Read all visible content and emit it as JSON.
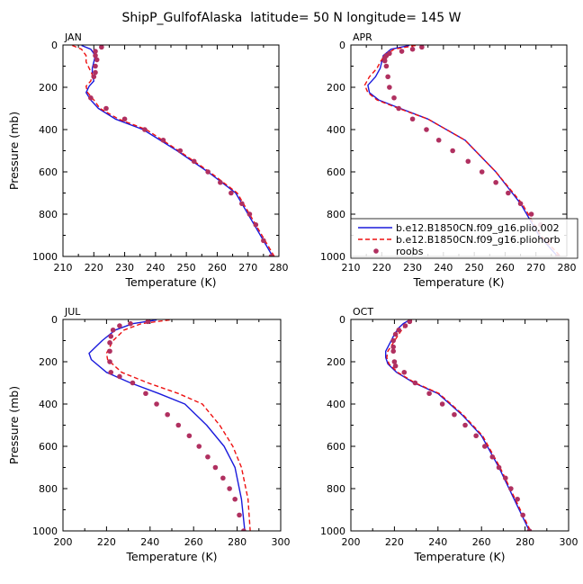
{
  "title": "ShipP_GulfofAlaska  latitude= 50 N longitude= 145 W",
  "colors": {
    "run1": "#1a1adc",
    "run2": "#ee1111",
    "roobs": "#b03060",
    "axis": "#000000"
  },
  "legend": {
    "entries": [
      {
        "label": "b.e12.B1850CN.f09_g16.plio.002",
        "style": "solid"
      },
      {
        "label": "b.e12.B1850CN.f09_g16.pliohorb",
        "style": "dashed"
      },
      {
        "label": "roobs",
        "style": "markers"
      }
    ]
  },
  "chart_data": [
    {
      "type": "line",
      "panel_label": "JAN",
      "xlabel": "Temperature (K)",
      "ylabel": "Pressure (mb)",
      "xlim": [
        210,
        280
      ],
      "ylim": [
        1000,
        0
      ],
      "y_inverted": true,
      "x_ticks": [
        210,
        220,
        230,
        240,
        250,
        260,
        270,
        280
      ],
      "y_ticks": [
        0,
        200,
        400,
        600,
        800,
        1000
      ],
      "series": [
        {
          "name": "b.e12.B1850CN.f09_g16.plio.002",
          "x": [
            216,
            219,
            220.5,
            220,
            219.5,
            219.5,
            220,
            218.5,
            217.5,
            219,
            221.5,
            227,
            236,
            247,
            257,
            266,
            272,
            278
          ],
          "y": [
            2,
            20,
            50,
            80,
            110,
            140,
            170,
            195,
            225,
            260,
            300,
            350,
            400,
            500,
            600,
            700,
            850,
            1000
          ]
        },
        {
          "name": "b.e12.B1850CN.f09_g16.pliohorb",
          "x": [
            213,
            216,
            217.5,
            217.5,
            218.5,
            219.5,
            219,
            217.5,
            218,
            220,
            222,
            228,
            237,
            247.5,
            257.5,
            266.5,
            272.5,
            278.5
          ],
          "y": [
            2,
            20,
            50,
            80,
            110,
            140,
            170,
            195,
            225,
            260,
            300,
            350,
            400,
            500,
            600,
            700,
            850,
            1000
          ]
        },
        {
          "name": "roobs",
          "x": [
            222.5,
            220.5,
            220.5,
            221,
            220.5,
            220.5,
            220,
            219,
            224,
            230,
            236.5,
            242.5,
            248,
            252.5,
            257,
            261,
            264.5,
            268,
            270.5,
            272.5,
            275,
            277.5
          ],
          "y": [
            10,
            30,
            50,
            70,
            100,
            130,
            150,
            250,
            300,
            350,
            400,
            450,
            500,
            550,
            600,
            650,
            700,
            750,
            800,
            850,
            925,
            1000
          ]
        }
      ]
    },
    {
      "type": "line",
      "panel_label": "APR",
      "xlabel": "Temperature (K)",
      "ylabel": "",
      "xlim": [
        210,
        280
      ],
      "ylim": [
        1000,
        0
      ],
      "y_inverted": true,
      "x_ticks": [
        210,
        220,
        230,
        240,
        250,
        260,
        270,
        280
      ],
      "y_ticks": [
        0,
        200,
        400,
        600,
        800,
        1000
      ],
      "series": [
        {
          "name": "b.e12.B1850CN.f09_g16.plio.002",
          "x": [
            229,
            223,
            220.5,
            220,
            219.5,
            218,
            215.5,
            216,
            219,
            226,
            235,
            247,
            257,
            265,
            271,
            277
          ],
          "y": [
            2,
            20,
            50,
            80,
            110,
            150,
            190,
            225,
            260,
            300,
            350,
            450,
            600,
            750,
            900,
            1000
          ]
        },
        {
          "name": "b.e12.B1850CN.f09_g16.pliohorb",
          "x": [
            231,
            224,
            221,
            219.5,
            218.5,
            216,
            214.5,
            215.5,
            218.5,
            225.5,
            235,
            247,
            257,
            265.5,
            271.5,
            278
          ],
          "y": [
            2,
            20,
            50,
            80,
            110,
            150,
            190,
            225,
            260,
            300,
            350,
            450,
            600,
            750,
            900,
            1000
          ]
        },
        {
          "name": "roobs",
          "x": [
            233,
            230,
            226.5,
            222.5,
            221.5,
            221,
            221,
            221.5,
            222,
            222.5,
            224,
            225.5,
            230,
            234.5,
            238.5,
            243,
            248,
            252.5,
            257,
            261,
            265,
            268.5,
            271.5,
            274.5,
            277
          ],
          "y": [
            10,
            20,
            30,
            40,
            50,
            60,
            75,
            100,
            150,
            200,
            250,
            300,
            350,
            400,
            450,
            500,
            550,
            600,
            650,
            700,
            750,
            800,
            850,
            925,
            1000
          ]
        }
      ]
    },
    {
      "type": "line",
      "panel_label": "JUL",
      "xlabel": "Temperature (K)",
      "ylabel": "Pressure (mb)",
      "xlim": [
        200,
        300
      ],
      "ylim": [
        1000,
        0
      ],
      "y_inverted": true,
      "x_ticks": [
        200,
        220,
        240,
        260,
        280,
        300
      ],
      "y_ticks": [
        0,
        200,
        400,
        600,
        800,
        1000
      ],
      "series": [
        {
          "name": "b.e12.B1850CN.f09_g16.plio.002",
          "x": [
            243,
            232,
            224,
            218,
            212,
            213,
            220,
            231,
            244,
            256,
            266,
            274,
            279,
            282,
            283.5
          ],
          "y": [
            2,
            20,
            50,
            100,
            160,
            190,
            250,
            300,
            350,
            400,
            500,
            600,
            700,
            850,
            1000
          ]
        },
        {
          "name": "b.e12.B1850CN.f09_g16.pliohorb",
          "x": [
            249,
            236,
            228,
            223,
            220,
            220.5,
            227,
            239,
            253,
            264,
            272,
            278,
            282,
            285,
            286
          ],
          "y": [
            2,
            20,
            50,
            100,
            160,
            190,
            250,
            300,
            350,
            400,
            500,
            600,
            700,
            850,
            1000
          ]
        },
        {
          "name": "roobs",
          "x": [
            239,
            231,
            226,
            223,
            222,
            221.5,
            221.5,
            221.5,
            222,
            226,
            232,
            238,
            243,
            248,
            253,
            258,
            262.5,
            266.5,
            270,
            273.5,
            276.5,
            279,
            281,
            283
          ],
          "y": [
            10,
            20,
            30,
            50,
            80,
            110,
            150,
            200,
            250,
            270,
            300,
            350,
            400,
            450,
            500,
            550,
            600,
            650,
            700,
            750,
            800,
            850,
            925,
            1000
          ]
        }
      ]
    },
    {
      "type": "line",
      "panel_label": "OCT",
      "xlabel": "Temperature (K)",
      "ylabel": "",
      "xlim": [
        200,
        300
      ],
      "ylim": [
        1000,
        0
      ],
      "y_inverted": true,
      "x_ticks": [
        200,
        220,
        240,
        260,
        280,
        300
      ],
      "y_ticks": [
        0,
        200,
        400,
        600,
        800,
        1000
      ],
      "series": [
        {
          "name": "b.e12.B1850CN.f09_g16.plio.002",
          "x": [
            227,
            224,
            222,
            220,
            218,
            216,
            216,
            217,
            221,
            229,
            240,
            251,
            260,
            268,
            275,
            282
          ],
          "y": [
            2,
            20,
            40,
            70,
            110,
            150,
            180,
            210,
            250,
            300,
            350,
            450,
            550,
            700,
            850,
            1000
          ]
        },
        {
          "name": "b.e12.B1850CN.f09_g16.pliohorb",
          "x": [
            228,
            226,
            224,
            222,
            219.5,
            217,
            216.5,
            217.5,
            221.5,
            229.5,
            240.5,
            251.5,
            260.5,
            268.5,
            275.5,
            282.5
          ],
          "y": [
            2,
            20,
            40,
            70,
            110,
            150,
            180,
            210,
            250,
            300,
            350,
            450,
            550,
            700,
            850,
            1000
          ]
        },
        {
          "name": "roobs",
          "x": [
            227,
            225,
            222,
            220.5,
            219.5,
            219.5,
            219.5,
            220,
            220.5,
            224.5,
            229.5,
            236,
            242,
            247.5,
            252.5,
            257.5,
            261.5,
            265,
            268,
            271,
            273.5,
            276.5,
            279,
            282
          ],
          "y": [
            10,
            30,
            50,
            70,
            100,
            130,
            150,
            200,
            220,
            250,
            300,
            350,
            400,
            450,
            500,
            550,
            600,
            650,
            700,
            750,
            800,
            850,
            925,
            1000
          ]
        }
      ]
    }
  ]
}
